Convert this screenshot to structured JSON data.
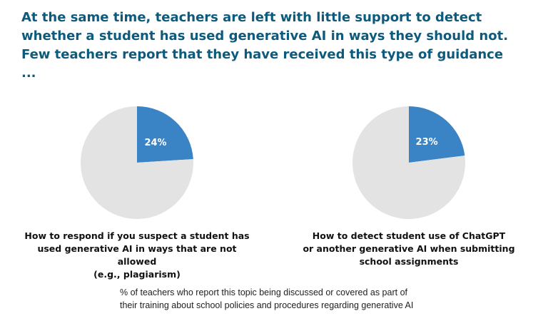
{
  "headline": "At the same time, teachers are left with little support to detect whether a student has used generative AI in ways they should not. Few teachers report that they have received this type of guidance ...",
  "colors": {
    "headline": "#0d5a7c",
    "highlight": "#3a84c6",
    "remainder": "#e3e3e3"
  },
  "chart_data": [
    {
      "type": "pie",
      "slices": [
        {
          "value": 24,
          "label": "24%",
          "role": "highlight"
        },
        {
          "value": 76,
          "label": "",
          "role": "remainder"
        }
      ],
      "caption_lines": [
        "How to respond if you suspect a student has",
        "used generative AI in ways that are not allowed",
        "(e.g., plagiarism)"
      ]
    },
    {
      "type": "pie",
      "slices": [
        {
          "value": 23,
          "label": "23%",
          "role": "highlight"
        },
        {
          "value": 77,
          "label": "",
          "role": "remainder"
        }
      ],
      "caption_lines": [
        "How to detect student use of ChatGPT",
        "or another generative AI when submitting",
        "school assignments"
      ]
    }
  ],
  "footnote_lines": [
    "% of teachers who report this topic being discussed or covered as part of",
    "their training about school policies and procedures regarding generative AI"
  ]
}
